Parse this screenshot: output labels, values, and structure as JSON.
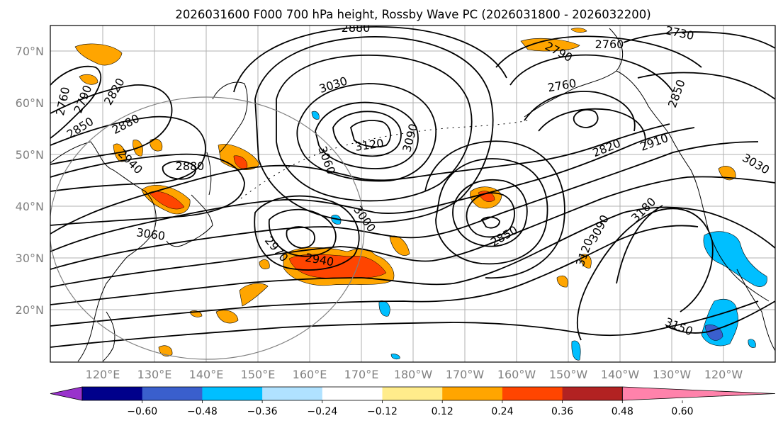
{
  "title": "2026031600 F000 700 hPa height, Rossby Wave PC (2026031800 - 2026032200)",
  "map": {
    "lat_labels": [
      "70°N",
      "60°N",
      "50°N",
      "40°N",
      "30°N",
      "20°N"
    ],
    "lon_labels": [
      "120°E",
      "130°E",
      "140°E",
      "150°E",
      "160°E",
      "170°E",
      "180°W",
      "170°W",
      "160°W",
      "150°W",
      "140°W",
      "130°W",
      "120°W"
    ],
    "contour_labels": [
      "2880",
      "2730",
      "2760",
      "2790",
      "3030",
      "2760",
      "2760",
      "2790",
      "2820",
      "2850",
      "2880",
      "2850",
      "3120",
      "3090",
      "3060",
      "2940",
      "2880",
      "2820",
      "2910",
      "3030",
      "3000",
      "3060",
      "2970",
      "2940",
      "2850",
      "3090",
      "3120",
      "3180",
      "3150"
    ]
  },
  "colorbar": {
    "tick_labels": [
      "−0.60",
      "−0.48",
      "−0.36",
      "−0.24",
      "−0.12",
      "0.12",
      "0.24",
      "0.36",
      "0.48",
      "0.60"
    ],
    "colors": [
      "#9932cc",
      "#00008b",
      "#3a5fcd",
      "#00bfff",
      "#b0e2ff",
      "#ffffff",
      "#ffec8b",
      "#ffa500",
      "#ff4500",
      "#b22222",
      "#ff82ab"
    ]
  }
}
